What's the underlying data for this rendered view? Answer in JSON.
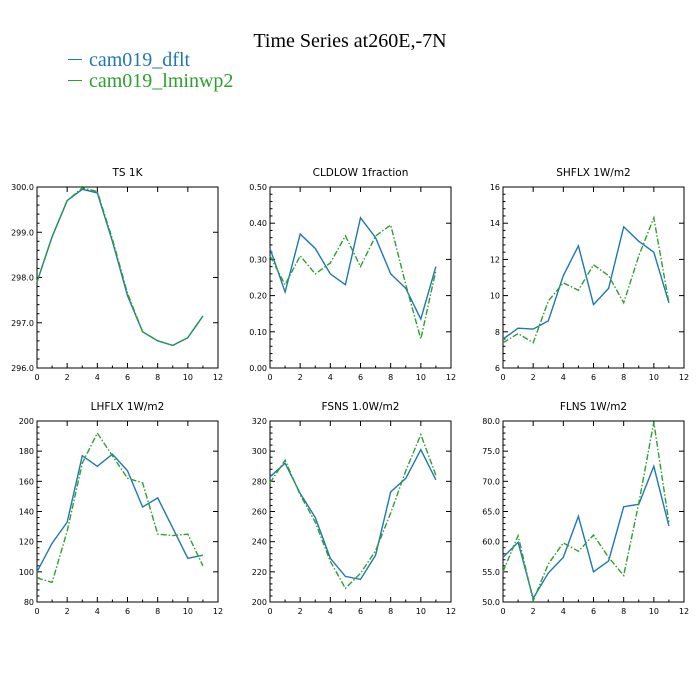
{
  "title": "Time Series at260E,-7N",
  "legend": [
    {
      "label": "cam019_dflt",
      "color": "#1f77b4"
    },
    {
      "label": "cam019_lminwp2",
      "color": "#2ca02c"
    }
  ],
  "chart_data": [
    {
      "type": "line",
      "title": "TS   1K",
      "x": [
        0,
        1,
        2,
        3,
        4,
        5,
        6,
        7,
        8,
        9,
        10,
        11
      ],
      "xlim": [
        0,
        12
      ],
      "xticks": [
        0,
        2,
        4,
        6,
        8,
        10,
        12
      ],
      "ylim": [
        296.0,
        300.0
      ],
      "yticks": [
        296.0,
        297.0,
        298.0,
        299.0,
        300.0
      ],
      "ytick_labels": [
        "296.0",
        "297.0",
        "298.0",
        "299.0",
        "300.0"
      ],
      "series": [
        {
          "name": "cam019_dflt",
          "values": [
            297.9,
            298.9,
            299.7,
            299.95,
            299.87,
            298.8,
            297.6,
            296.8,
            296.6,
            296.5,
            296.67,
            297.15
          ]
        },
        {
          "name": "cam019_lminwp2",
          "values": [
            297.9,
            298.9,
            299.7,
            299.98,
            299.9,
            298.85,
            297.65,
            296.8,
            296.6,
            296.5,
            296.67,
            297.15
          ]
        }
      ]
    },
    {
      "type": "line",
      "title": "CLDLOW   1fraction",
      "x": [
        0,
        1,
        2,
        3,
        4,
        5,
        6,
        7,
        8,
        9,
        10,
        11
      ],
      "xlim": [
        0,
        12
      ],
      "xticks": [
        0,
        2,
        4,
        6,
        8,
        10,
        12
      ],
      "ylim": [
        0.0,
        0.5
      ],
      "yticks": [
        0.0,
        0.1,
        0.2,
        0.3,
        0.4,
        0.5
      ],
      "ytick_labels": [
        "0.00",
        "0.10",
        "0.20",
        "0.30",
        "0.40",
        "0.50"
      ],
      "series": [
        {
          "name": "cam019_dflt",
          "values": [
            0.33,
            0.21,
            0.37,
            0.33,
            0.26,
            0.23,
            0.415,
            0.36,
            0.26,
            0.22,
            0.135,
            0.28
          ]
        },
        {
          "name": "cam019_lminwp2",
          "values": [
            0.31,
            0.23,
            0.31,
            0.26,
            0.29,
            0.365,
            0.28,
            0.365,
            0.395,
            0.23,
            0.08,
            0.27
          ]
        }
      ]
    },
    {
      "type": "line",
      "title": "SHFLX   1W/m2",
      "x": [
        0,
        1,
        2,
        3,
        4,
        5,
        6,
        7,
        8,
        9,
        10,
        11
      ],
      "xlim": [
        0,
        12
      ],
      "xticks": [
        0,
        2,
        4,
        6,
        8,
        10,
        12
      ],
      "ylim": [
        6,
        16
      ],
      "yticks": [
        6,
        8,
        10,
        12,
        14,
        16
      ],
      "ytick_labels": [
        "6",
        "8",
        "10",
        "12",
        "14",
        "16"
      ],
      "series": [
        {
          "name": "cam019_dflt",
          "values": [
            7.6,
            8.2,
            8.15,
            8.6,
            11.1,
            12.75,
            9.5,
            10.4,
            13.8,
            13.0,
            12.4,
            9.6
          ]
        },
        {
          "name": "cam019_lminwp2",
          "values": [
            7.4,
            7.9,
            7.4,
            9.7,
            10.7,
            10.3,
            11.7,
            11.1,
            9.6,
            12.2,
            14.3,
            9.6
          ]
        }
      ]
    },
    {
      "type": "line",
      "title": "LHFLX   1W/m2",
      "x": [
        0,
        1,
        2,
        3,
        4,
        5,
        6,
        7,
        8,
        9,
        10,
        11
      ],
      "xlim": [
        0,
        12
      ],
      "xticks": [
        0,
        2,
        4,
        6,
        8,
        10,
        12
      ],
      "ylim": [
        80,
        200
      ],
      "yticks": [
        80,
        100,
        120,
        140,
        160,
        180,
        200
      ],
      "ytick_labels": [
        "80",
        "100",
        "120",
        "140",
        "160",
        "180",
        "200"
      ],
      "series": [
        {
          "name": "cam019_dflt",
          "values": [
            100,
            119,
            133,
            177,
            170,
            178,
            167,
            143,
            149,
            129,
            109,
            111
          ]
        },
        {
          "name": "cam019_lminwp2",
          "values": [
            96,
            93,
            127,
            172,
            192,
            177,
            162,
            159,
            125,
            124,
            125,
            104
          ]
        }
      ]
    },
    {
      "type": "line",
      "title": "FSNS   1.0W/m2",
      "x": [
        0,
        1,
        2,
        3,
        4,
        5,
        6,
        7,
        8,
        9,
        10,
        11
      ],
      "xlim": [
        0,
        12
      ],
      "xticks": [
        0,
        2,
        4,
        6,
        8,
        10,
        12
      ],
      "ylim": [
        200,
        320
      ],
      "yticks": [
        200,
        220,
        240,
        260,
        280,
        300,
        320
      ],
      "ytick_labels": [
        "200",
        "220",
        "240",
        "260",
        "280",
        "300",
        "320"
      ],
      "series": [
        {
          "name": "cam019_dflt",
          "values": [
            283,
            292,
            272,
            256,
            229,
            217,
            215,
            231,
            273,
            282,
            301,
            281
          ]
        },
        {
          "name": "cam019_lminwp2",
          "values": [
            279,
            294,
            271,
            253,
            227,
            209,
            219,
            234,
            259,
            287,
            311,
            284
          ]
        }
      ]
    },
    {
      "type": "line",
      "title": "FLNS   1W/m2",
      "x": [
        0,
        1,
        2,
        3,
        4,
        5,
        6,
        7,
        8,
        9,
        10,
        11
      ],
      "xlim": [
        0,
        12
      ],
      "xticks": [
        0,
        2,
        4,
        6,
        8,
        10,
        12
      ],
      "ylim": [
        50.0,
        80.0
      ],
      "yticks": [
        50.0,
        55.0,
        60.0,
        65.0,
        70.0,
        75.0,
        80.0
      ],
      "ytick_labels": [
        "50.0",
        "55.0",
        "60.0",
        "65.0",
        "70.0",
        "75.0",
        "80.0"
      ],
      "series": [
        {
          "name": "cam019_dflt",
          "values": [
            57.4,
            59.9,
            50.6,
            54.8,
            57.4,
            64.2,
            55.0,
            56.8,
            65.8,
            66.2,
            72.5,
            62.6
          ]
        },
        {
          "name": "cam019_lminwp2",
          "values": [
            55.0,
            61.0,
            50.2,
            56.3,
            59.8,
            58.4,
            61.1,
            57.4,
            54.4,
            66.4,
            79.8,
            63.2
          ]
        }
      ]
    }
  ]
}
